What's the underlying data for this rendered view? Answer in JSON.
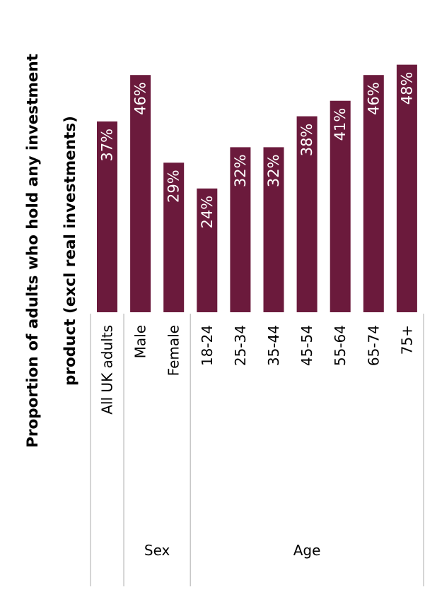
{
  "chart_data": {
    "type": "bar",
    "ylabel_lines": [
      "Proportion of adults who hold any investment",
      "product (excl real investments)"
    ],
    "categories": [
      "All UK adults",
      "Male",
      "Female",
      "18-24",
      "25-34",
      "35-44",
      "45-54",
      "55-64",
      "65-74",
      "75+"
    ],
    "values": [
      37,
      46,
      29,
      24,
      32,
      32,
      38,
      41,
      46,
      48
    ],
    "value_labels": [
      "37%",
      "46%",
      "29%",
      "24%",
      "32%",
      "32%",
      "38%",
      "41%",
      "46%",
      "48%"
    ],
    "groups": [
      {
        "label": "",
        "categories": [
          "All UK adults"
        ]
      },
      {
        "label": "Sex",
        "categories": [
          "Male",
          "Female"
        ]
      },
      {
        "label": "Age",
        "categories": [
          "18-24",
          "25-34",
          "35-44",
          "45-54",
          "55-64",
          "65-74",
          "75+"
        ]
      }
    ],
    "ylim": [
      0,
      48
    ],
    "grid": false,
    "legend": "none",
    "colors": {
      "bar": "#6b1a3c"
    }
  }
}
